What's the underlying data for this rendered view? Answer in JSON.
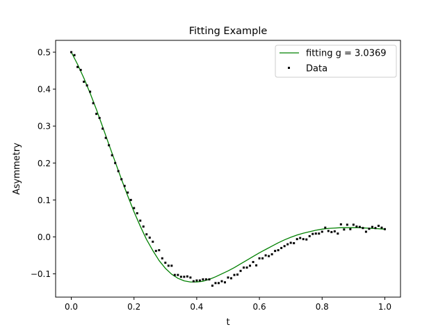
{
  "chart_data": {
    "type": "line",
    "title": "Fitting Example",
    "xlabel": "t",
    "ylabel": "Asymmetry",
    "xlim": [
      -0.05,
      1.05
    ],
    "ylim": [
      -0.163,
      0.532
    ],
    "xticks": [
      0.0,
      0.2,
      0.4,
      0.6,
      0.8,
      1.0
    ],
    "xtick_labels": [
      "0.0",
      "0.2",
      "0.4",
      "0.6",
      "0.8",
      "1.0"
    ],
    "yticks": [
      -0.1,
      0.0,
      0.1,
      0.2,
      0.3,
      0.4,
      0.5
    ],
    "ytick_labels": [
      "−0.1",
      "0.0",
      "0.1",
      "0.2",
      "0.3",
      "0.4",
      "0.5"
    ],
    "grid": false,
    "legend_position": "top-right",
    "series": [
      {
        "name": "fitting g = 3.0369",
        "kind": "line",
        "color": "#008000",
        "x": [
          0.0,
          0.02,
          0.04,
          0.06,
          0.08,
          0.1,
          0.12,
          0.14,
          0.16,
          0.18,
          0.2,
          0.22,
          0.24,
          0.26,
          0.28,
          0.3,
          0.32,
          0.34,
          0.36,
          0.38,
          0.4,
          0.42,
          0.44,
          0.46,
          0.48,
          0.5,
          0.52,
          0.54,
          0.56,
          0.58,
          0.6,
          0.62,
          0.64,
          0.66,
          0.68,
          0.7,
          0.72,
          0.74,
          0.76,
          0.78,
          0.8,
          0.82,
          0.84,
          0.86,
          0.88,
          0.9,
          0.92,
          0.94,
          0.96,
          0.98,
          1.0
        ],
        "y": [
          0.5,
          0.467,
          0.43,
          0.389,
          0.345,
          0.298,
          0.25,
          0.203,
          0.156,
          0.111,
          0.068,
          0.029,
          -0.007,
          -0.037,
          -0.064,
          -0.085,
          -0.101,
          -0.112,
          -0.119,
          -0.122,
          -0.122,
          -0.12,
          -0.115,
          -0.108,
          -0.1,
          -0.092,
          -0.083,
          -0.073,
          -0.063,
          -0.053,
          -0.043,
          -0.034,
          -0.025,
          -0.016,
          -0.008,
          -0.001,
          0.005,
          0.01,
          0.014,
          0.018,
          0.021,
          0.023,
          0.024,
          0.025,
          0.025,
          0.025,
          0.025,
          0.024,
          0.023,
          0.022,
          0.021
        ]
      },
      {
        "name": "Data",
        "kind": "scatter",
        "color": "#000000",
        "x": [
          0.0,
          0.01,
          0.02,
          0.03,
          0.04,
          0.05,
          0.06,
          0.07,
          0.08,
          0.09,
          0.1,
          0.11,
          0.12,
          0.13,
          0.14,
          0.15,
          0.16,
          0.17,
          0.18,
          0.19,
          0.2,
          0.21,
          0.22,
          0.23,
          0.24,
          0.25,
          0.26,
          0.27,
          0.28,
          0.29,
          0.3,
          0.31,
          0.32,
          0.33,
          0.34,
          0.35,
          0.36,
          0.37,
          0.38,
          0.39,
          0.4,
          0.41,
          0.42,
          0.43,
          0.44,
          0.45,
          0.46,
          0.47,
          0.48,
          0.49,
          0.5,
          0.51,
          0.52,
          0.53,
          0.54,
          0.55,
          0.56,
          0.57,
          0.58,
          0.59,
          0.6,
          0.61,
          0.62,
          0.63,
          0.64,
          0.65,
          0.66,
          0.67,
          0.68,
          0.69,
          0.7,
          0.71,
          0.72,
          0.73,
          0.74,
          0.75,
          0.76,
          0.77,
          0.78,
          0.79,
          0.8,
          0.81,
          0.82,
          0.83,
          0.84,
          0.85,
          0.86,
          0.87,
          0.88,
          0.89,
          0.9,
          0.91,
          0.92,
          0.93,
          0.94,
          0.95,
          0.96,
          0.97,
          0.98,
          0.99,
          1.0
        ],
        "y": [
          0.5,
          0.492,
          0.46,
          0.452,
          0.42,
          0.41,
          0.393,
          0.362,
          0.333,
          0.322,
          0.293,
          0.268,
          0.248,
          0.221,
          0.2,
          0.178,
          0.156,
          0.138,
          0.12,
          0.1,
          0.078,
          0.064,
          0.044,
          0.028,
          0.007,
          -0.002,
          -0.013,
          -0.038,
          -0.036,
          -0.058,
          -0.07,
          -0.078,
          -0.078,
          -0.103,
          -0.103,
          -0.108,
          -0.108,
          -0.107,
          -0.11,
          -0.12,
          -0.118,
          -0.118,
          -0.115,
          -0.115,
          -0.115,
          -0.132,
          -0.125,
          -0.125,
          -0.12,
          -0.123,
          -0.11,
          -0.112,
          -0.103,
          -0.102,
          -0.092,
          -0.083,
          -0.083,
          -0.078,
          -0.068,
          -0.077,
          -0.058,
          -0.058,
          -0.05,
          -0.052,
          -0.047,
          -0.038,
          -0.036,
          -0.03,
          -0.025,
          -0.02,
          -0.016,
          -0.017,
          -0.006,
          -0.003,
          -0.006,
          -0.007,
          0.002,
          0.008,
          0.009,
          0.009,
          0.014,
          0.025,
          0.016,
          0.013,
          0.015,
          0.009,
          0.034,
          0.02,
          0.033,
          0.021,
          0.033,
          0.028,
          0.027,
          0.024,
          0.014,
          0.022,
          0.027,
          0.024,
          0.03,
          0.025,
          0.021
        ]
      }
    ]
  }
}
